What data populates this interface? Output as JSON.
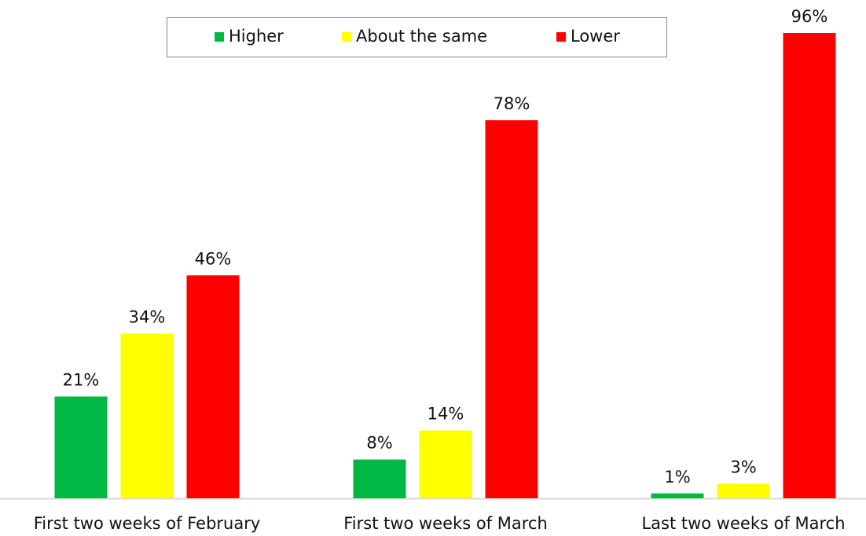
{
  "chart_data": {
    "type": "bar",
    "categories": [
      "First two weeks of February",
      "First two weeks of March",
      "Last two weeks of March"
    ],
    "series": [
      {
        "name": "Higher",
        "color": "#00b843",
        "values": [
          21,
          8,
          1
        ],
        "value_labels": [
          "21%",
          "8%",
          "1%"
        ]
      },
      {
        "name": "About the same",
        "color": "#ffff00",
        "values": [
          34,
          14,
          3
        ],
        "value_labels": [
          "34%",
          "14%",
          "3%"
        ]
      },
      {
        "name": "Lower",
        "color": "#ff0000",
        "values": [
          46,
          78,
          96
        ],
        "value_labels": [
          "46%",
          "78%",
          "96%"
        ]
      }
    ],
    "legend": "top"
  }
}
